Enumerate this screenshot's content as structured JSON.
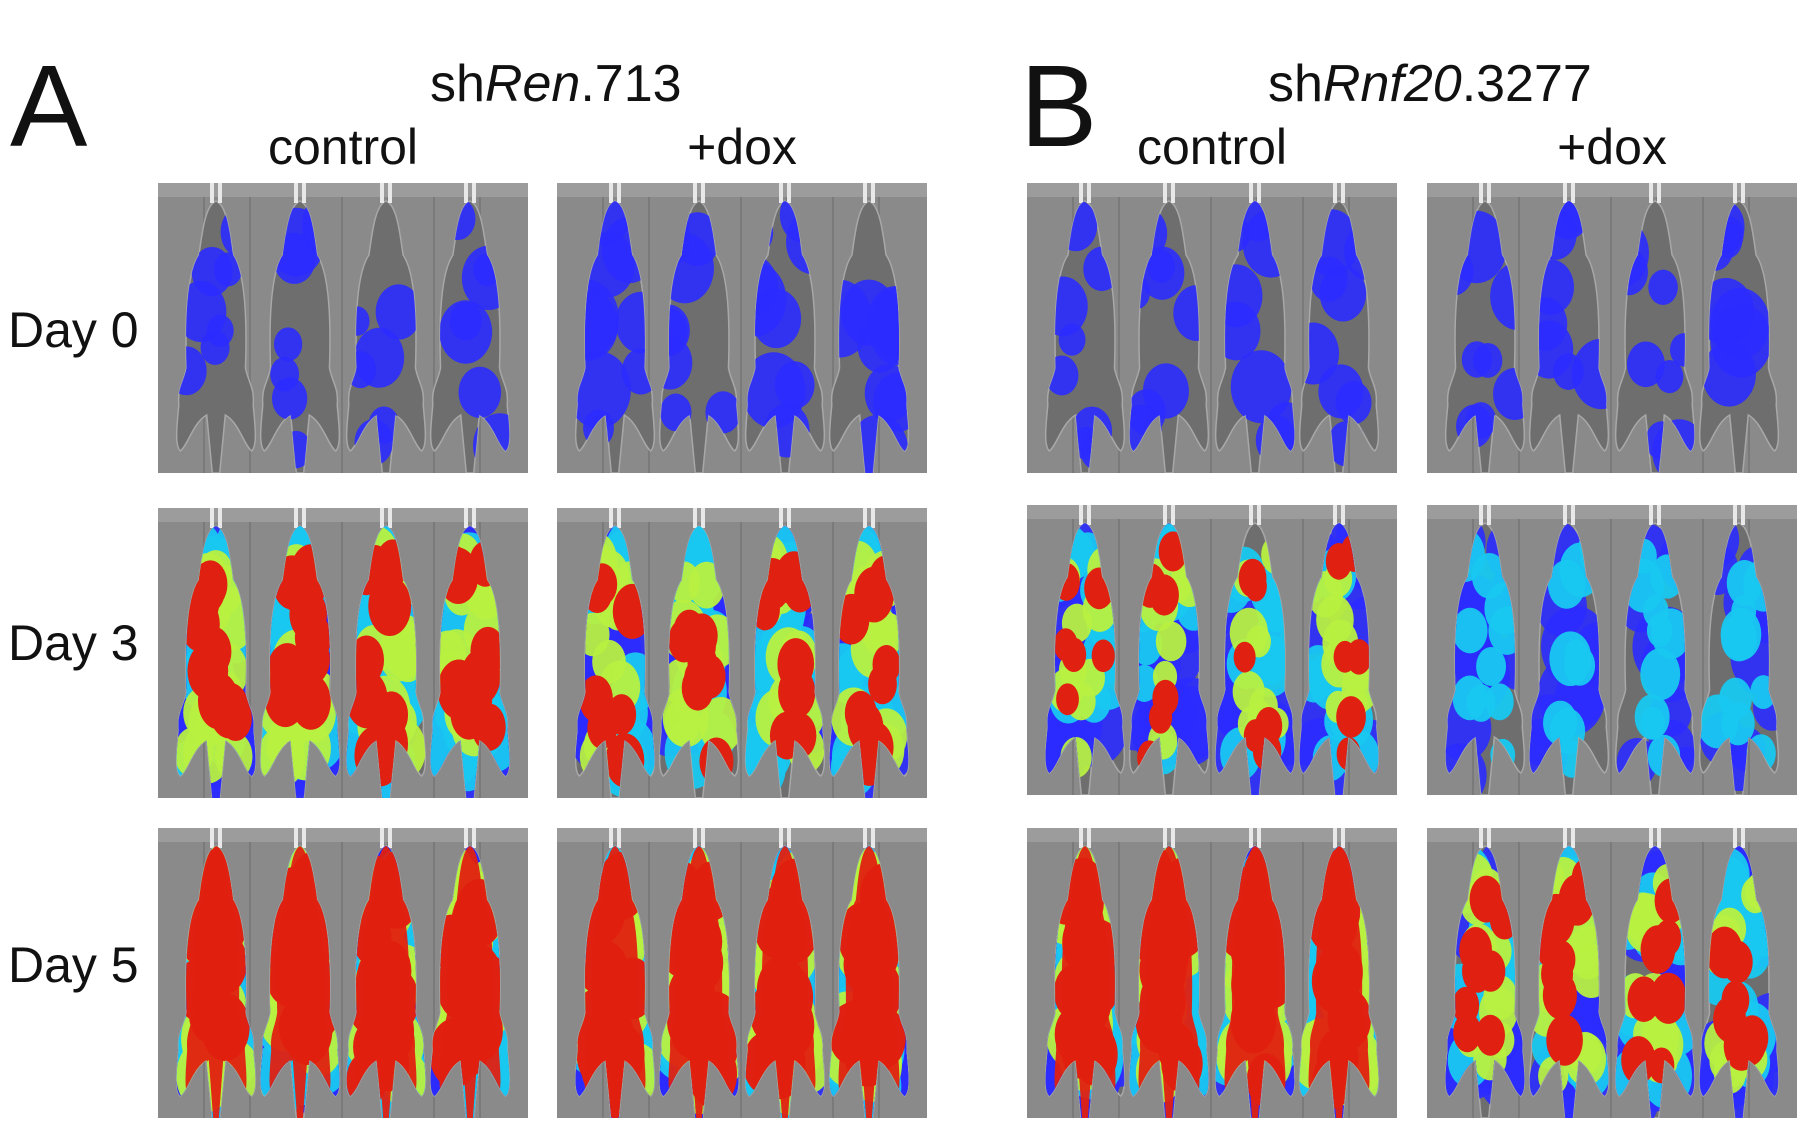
{
  "panels": [
    {
      "letter": "A",
      "construct": {
        "prefix": "sh",
        "gene": "Ren",
        "suffix": ".713"
      },
      "columns": [
        "control",
        "+dox"
      ]
    },
    {
      "letter": "B",
      "construct": {
        "prefix": "sh",
        "gene": "Rnf20",
        "suffix": ".3277"
      },
      "columns": [
        "control",
        "+dox"
      ]
    }
  ],
  "rows": [
    "Day 0",
    "Day 3",
    "Day 5"
  ],
  "signal_levels": {
    "A": {
      "control": [
        0.12,
        0.72,
        0.95
      ],
      "+dox": [
        0.25,
        0.62,
        0.97
      ]
    },
    "B": {
      "control": [
        0.18,
        0.42,
        0.9
      ],
      "+dox": [
        0.2,
        0.3,
        0.55
      ]
    }
  },
  "colors": {
    "background": "#8a8a8a",
    "low": "#2b2bff",
    "mid": "#18c8f0",
    "midhigh": "#b8f040",
    "high": "#e02010"
  }
}
